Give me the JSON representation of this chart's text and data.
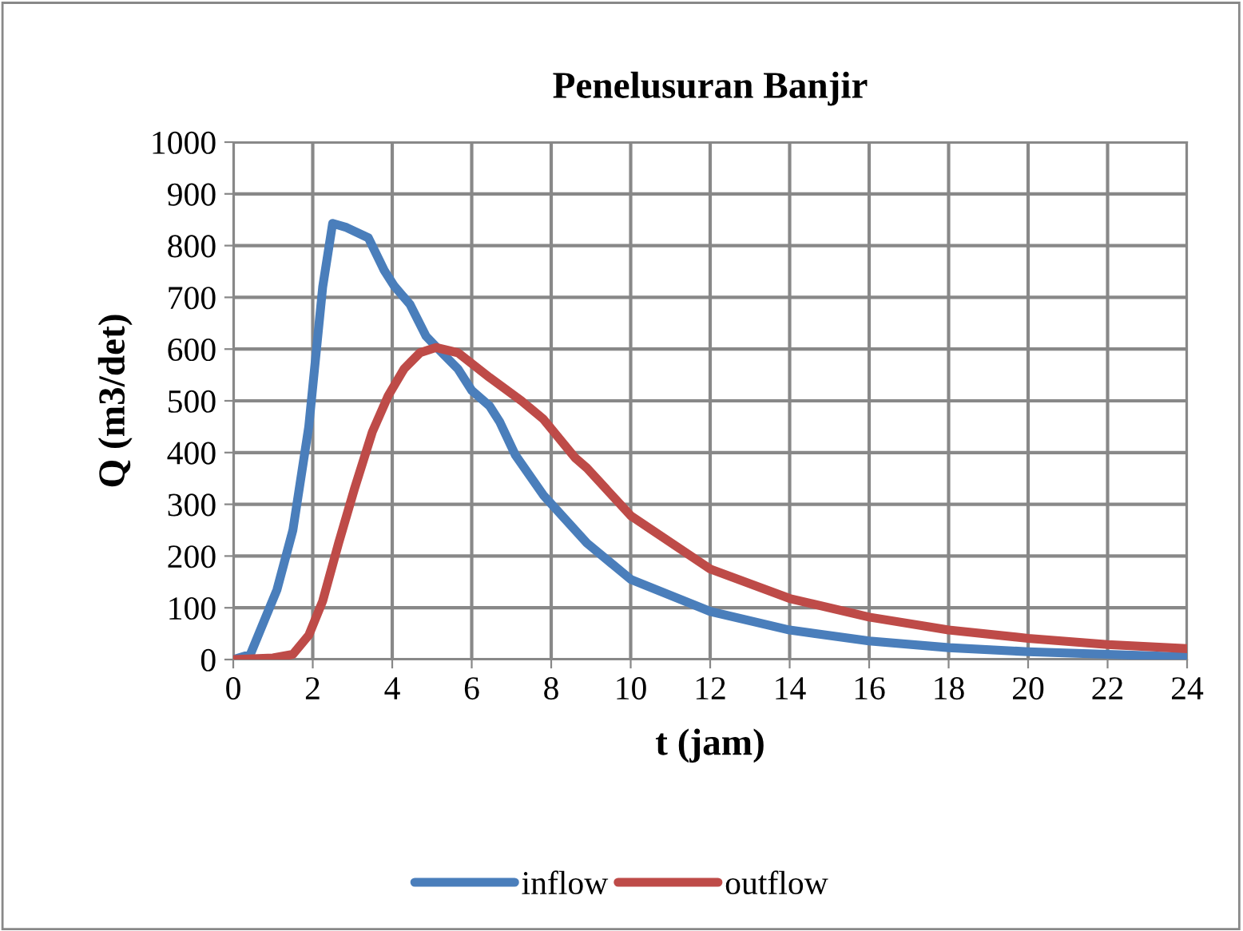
{
  "chart_data": {
    "type": "line",
    "title": "Penelusuran Banjir",
    "xlabel": "t (jam)",
    "ylabel": "Q (m3/det)",
    "xlim": [
      0,
      24
    ],
    "ylim": [
      0,
      1000
    ],
    "xticks": [
      0,
      2,
      4,
      6,
      8,
      10,
      12,
      14,
      16,
      18,
      20,
      22,
      24
    ],
    "yticks": [
      0,
      100,
      200,
      300,
      400,
      500,
      600,
      700,
      800,
      900,
      1000
    ],
    "grid": true,
    "legend": "bottom",
    "marker": "none",
    "line_style": "solid",
    "series": [
      {
        "name": "inflow",
        "color": "#4a7ebb",
        "x": [
          0,
          0.43,
          1.1,
          1.5,
          1.9,
          2.25,
          2.5,
          2.85,
          3.4,
          3.8,
          4.05,
          4.45,
          4.85,
          5.25,
          5.65,
          6.0,
          6.45,
          6.7,
          7.1,
          7.8,
          8.9,
          10,
          12,
          14,
          16,
          18,
          20,
          22,
          24
        ],
        "values": [
          0,
          10,
          135,
          250,
          450,
          720,
          843,
          835,
          815,
          752,
          722,
          686,
          625,
          593,
          562,
          520,
          490,
          460,
          395,
          318,
          225,
          155,
          93,
          57,
          36,
          23,
          15,
          10,
          5
        ]
      },
      {
        "name": "outflow",
        "color": "#be4b48",
        "x": [
          0,
          1.0,
          1.5,
          1.9,
          2.25,
          2.65,
          3.05,
          3.5,
          3.9,
          4.3,
          4.7,
          5.1,
          5.65,
          6.45,
          7.25,
          7.8,
          8.6,
          8.9,
          10,
          12,
          14,
          16,
          18,
          20,
          22,
          24
        ],
        "values": [
          0,
          3,
          10,
          47,
          113,
          225,
          330,
          440,
          510,
          562,
          593,
          603,
          593,
          545,
          500,
          465,
          390,
          370,
          278,
          175,
          118,
          82,
          57,
          41,
          29,
          21
        ]
      }
    ]
  }
}
